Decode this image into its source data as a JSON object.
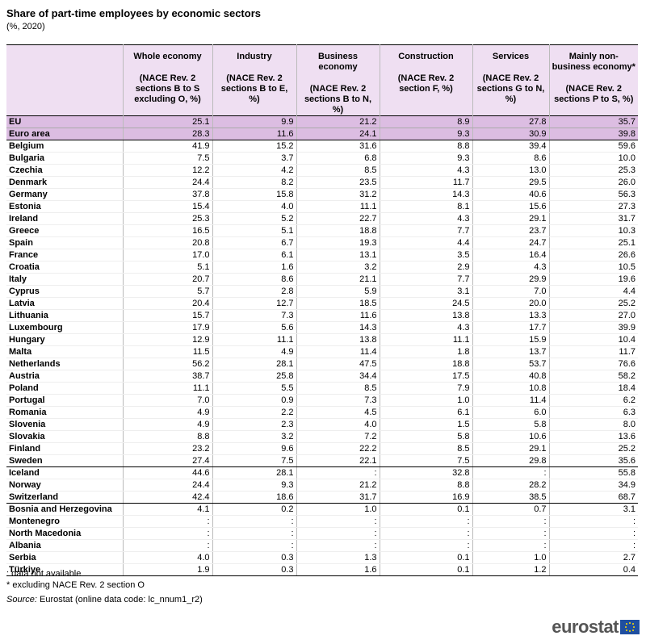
{
  "header": {
    "title": "Share of part-time employees by economic sectors",
    "subtitle": "(%, 2020)"
  },
  "table": {
    "columns": [
      {
        "title": "Whole economy",
        "sub": "(NACE Rev. 2 sections B to S excluding O, %)"
      },
      {
        "title": "Industry",
        "sub": "(NACE Rev. 2 sections B to E, %)"
      },
      {
        "title": "Business economy",
        "sub": "(NACE Rev. 2 sections B to N, %)"
      },
      {
        "title": "Construction",
        "sub": "(NACE Rev. 2 section F, %)"
      },
      {
        "title": "Services",
        "sub": "(NACE Rev. 2 sections G to N, %)"
      },
      {
        "title": "Mainly non-business economy*",
        "sub": "(NACE Rev. 2 sections P to S, %)"
      }
    ],
    "groups": [
      [
        {
          "name": "EU",
          "values": [
            "25.1",
            "9.9",
            "21.2",
            "8.9",
            "27.8",
            "35.7"
          ]
        },
        {
          "name": "Euro area",
          "values": [
            "28.3",
            "11.6",
            "24.1",
            "9.3",
            "30.9",
            "39.8"
          ]
        }
      ],
      [
        {
          "name": "Belgium",
          "values": [
            "41.9",
            "15.2",
            "31.6",
            "8.8",
            "39.4",
            "59.6"
          ]
        },
        {
          "name": "Bulgaria",
          "values": [
            "7.5",
            "3.7",
            "6.8",
            "9.3",
            "8.6",
            "10.0"
          ]
        },
        {
          "name": "Czechia",
          "values": [
            "12.2",
            "4.2",
            "8.5",
            "4.3",
            "13.0",
            "25.3"
          ]
        },
        {
          "name": "Denmark",
          "values": [
            "24.4",
            "8.2",
            "23.5",
            "11.7",
            "29.5",
            "26.0"
          ]
        },
        {
          "name": "Germany",
          "values": [
            "37.8",
            "15.8",
            "31.2",
            "14.3",
            "40.6",
            "56.3"
          ]
        },
        {
          "name": "Estonia",
          "values": [
            "15.4",
            "4.0",
            "11.1",
            "8.1",
            "15.6",
            "27.3"
          ]
        },
        {
          "name": "Ireland",
          "values": [
            "25.3",
            "5.2",
            "22.7",
            "4.3",
            "29.1",
            "31.7"
          ]
        },
        {
          "name": "Greece",
          "values": [
            "16.5",
            "5.1",
            "18.8",
            "7.7",
            "23.7",
            "10.3"
          ]
        },
        {
          "name": "Spain",
          "values": [
            "20.8",
            "6.7",
            "19.3",
            "4.4",
            "24.7",
            "25.1"
          ]
        },
        {
          "name": "France",
          "values": [
            "17.0",
            "6.1",
            "13.1",
            "3.5",
            "16.4",
            "26.6"
          ]
        },
        {
          "name": "Croatia",
          "values": [
            "5.1",
            "1.6",
            "3.2",
            "2.9",
            "4.3",
            "10.5"
          ]
        },
        {
          "name": "Italy",
          "values": [
            "20.7",
            "8.6",
            "21.1",
            "7.7",
            "29.9",
            "19.6"
          ]
        },
        {
          "name": "Cyprus",
          "values": [
            "5.7",
            "2.8",
            "5.9",
            "3.1",
            "7.0",
            "4.4"
          ]
        },
        {
          "name": "Latvia",
          "values": [
            "20.4",
            "12.7",
            "18.5",
            "24.5",
            "20.0",
            "25.2"
          ]
        },
        {
          "name": "Lithuania",
          "values": [
            "15.7",
            "7.3",
            "11.6",
            "13.8",
            "13.3",
            "27.0"
          ]
        },
        {
          "name": "Luxembourg",
          "values": [
            "17.9",
            "5.6",
            "14.3",
            "4.3",
            "17.7",
            "39.9"
          ]
        },
        {
          "name": "Hungary",
          "values": [
            "12.9",
            "11.1",
            "13.8",
            "11.1",
            "15.9",
            "10.4"
          ]
        },
        {
          "name": "Malta",
          "values": [
            "11.5",
            "4.9",
            "11.4",
            "1.8",
            "13.7",
            "11.7"
          ]
        },
        {
          "name": "Netherlands",
          "values": [
            "56.2",
            "28.1",
            "47.5",
            "18.8",
            "53.7",
            "76.6"
          ]
        },
        {
          "name": "Austria",
          "values": [
            "38.7",
            "25.8",
            "34.4",
            "17.5",
            "40.8",
            "58.2"
          ]
        },
        {
          "name": "Poland",
          "values": [
            "11.1",
            "5.5",
            "8.5",
            "7.9",
            "10.8",
            "18.4"
          ]
        },
        {
          "name": "Portugal",
          "values": [
            "7.0",
            "0.9",
            "7.3",
            "1.0",
            "11.4",
            "6.2"
          ]
        },
        {
          "name": "Romania",
          "values": [
            "4.9",
            "2.2",
            "4.5",
            "6.1",
            "6.0",
            "6.3"
          ]
        },
        {
          "name": "Slovenia",
          "values": [
            "4.9",
            "2.3",
            "4.0",
            "1.5",
            "5.8",
            "8.0"
          ]
        },
        {
          "name": "Slovakia",
          "values": [
            "8.8",
            "3.2",
            "7.2",
            "5.8",
            "10.6",
            "13.6"
          ]
        },
        {
          "name": "Finland",
          "values": [
            "23.2",
            "9.6",
            "22.2",
            "8.5",
            "29.1",
            "25.2"
          ]
        },
        {
          "name": "Sweden",
          "values": [
            "27.4",
            "7.5",
            "22.1",
            "7.5",
            "29.8",
            "35.6"
          ]
        }
      ],
      [
        {
          "name": "Iceland",
          "values": [
            "44.6",
            "28.1",
            ":",
            "32.8",
            ":",
            "55.8"
          ]
        },
        {
          "name": "Norway",
          "values": [
            "24.4",
            "9.3",
            "21.2",
            "8.8",
            "28.2",
            "34.9"
          ]
        },
        {
          "name": "Switzerland",
          "values": [
            "42.4",
            "18.6",
            "31.7",
            "16.9",
            "38.5",
            "68.7"
          ]
        }
      ],
      [
        {
          "name": "Bosnia and Herzegovina",
          "values": [
            "4.1",
            "0.2",
            "1.0",
            "0.1",
            "0.7",
            "3.1"
          ]
        },
        {
          "name": "Montenegro",
          "values": [
            ":",
            ":",
            ":",
            ":",
            ":",
            ":"
          ]
        },
        {
          "name": "North Macedonia",
          "values": [
            ":",
            ":",
            ":",
            ":",
            ":",
            ":"
          ]
        },
        {
          "name": "Albania",
          "values": [
            ":",
            ":",
            ":",
            ":",
            ":",
            ":"
          ]
        },
        {
          "name": "Serbia",
          "values": [
            "4.0",
            "0.3",
            "1.3",
            "0.1",
            "1.0",
            "2.7"
          ]
        },
        {
          "name": "Türkiye",
          "values": [
            "1.9",
            "0.3",
            "1.6",
            "0.1",
            "1.2",
            "0.4"
          ]
        }
      ]
    ]
  },
  "footer": {
    "notes": [
      ": data not available",
      "* excluding NACE Rev. 2 section O"
    ],
    "source_label": "Source:",
    "source": "Eurostat (online data code: lc_nnum1_r2)",
    "logo": "eurostat"
  }
}
